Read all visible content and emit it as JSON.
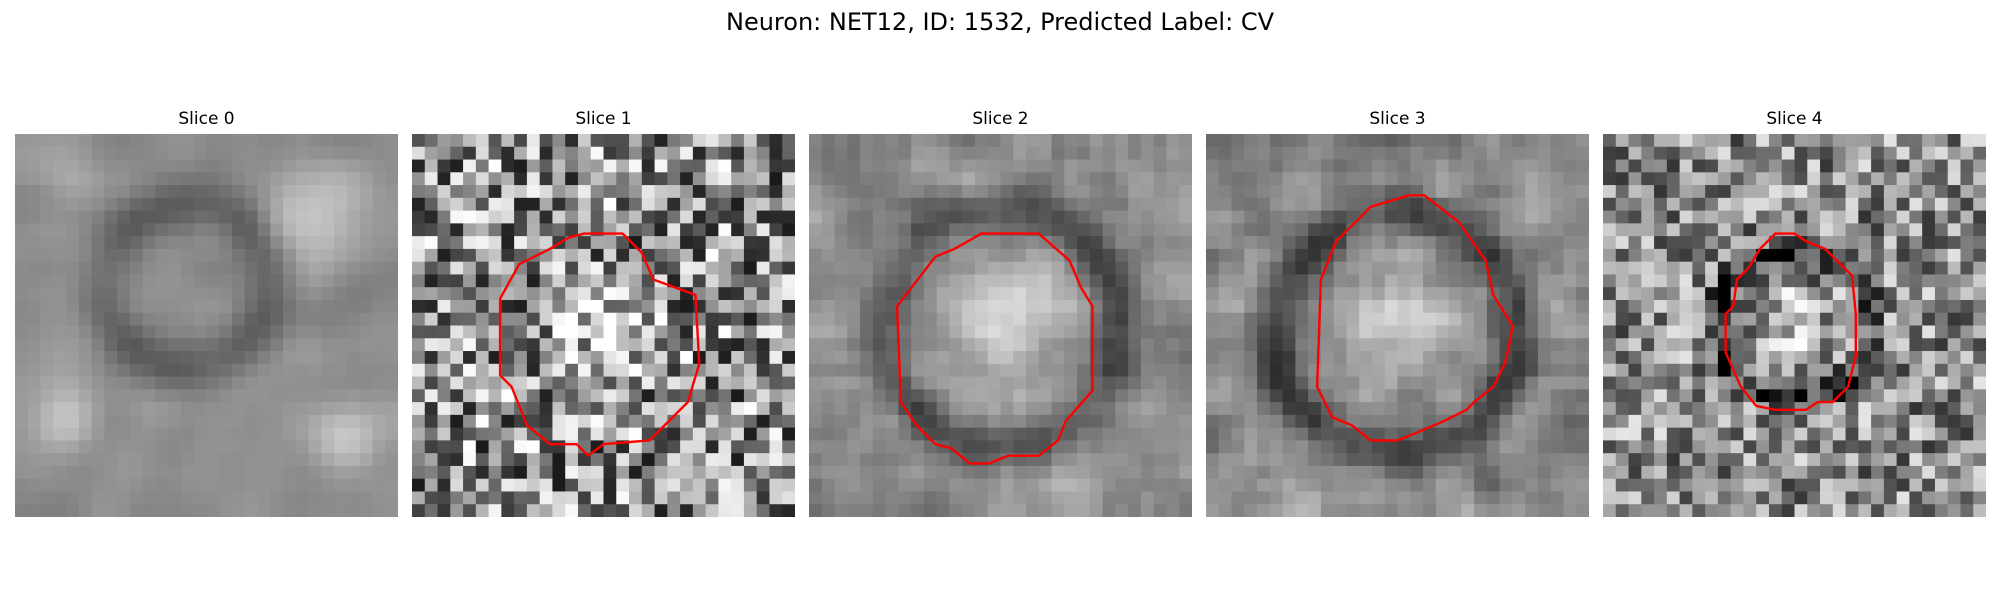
{
  "title": "Neuron: NET12, ID: 1532, Predicted Label: CV",
  "outline_color": "#ff0000",
  "panels": [
    {
      "title": "Slice 0",
      "outline": [],
      "seed": 11,
      "noise": 0.18,
      "blur": 2,
      "bright_blobs": [
        [
          0.12,
          0.1,
          0.1
        ],
        [
          0.8,
          0.2,
          0.18
        ],
        [
          0.13,
          0.75,
          0.12
        ],
        [
          0.85,
          0.8,
          0.15
        ]
      ],
      "dark_rings": [
        [
          0.45,
          0.4,
          0.22,
          0.05
        ]
      ]
    },
    {
      "title": "Slice 1",
      "seed": 23,
      "noise": 0.45,
      "blur": 0,
      "bright_blobs": [
        [
          0.5,
          0.5,
          0.2
        ]
      ],
      "dark_rings": [],
      "outline": [
        [
          0.45,
          0.26
        ],
        [
          0.55,
          0.26
        ],
        [
          0.6,
          0.31
        ],
        [
          0.63,
          0.38
        ],
        [
          0.74,
          0.42
        ],
        [
          0.75,
          0.6
        ],
        [
          0.72,
          0.7
        ],
        [
          0.62,
          0.8
        ],
        [
          0.5,
          0.81
        ],
        [
          0.46,
          0.84
        ],
        [
          0.43,
          0.81
        ],
        [
          0.36,
          0.81
        ],
        [
          0.3,
          0.76
        ],
        [
          0.26,
          0.66
        ],
        [
          0.23,
          0.63
        ],
        [
          0.23,
          0.43
        ],
        [
          0.28,
          0.34
        ],
        [
          0.36,
          0.3
        ],
        [
          0.41,
          0.27
        ]
      ]
    },
    {
      "title": "Slice 2",
      "seed": 37,
      "noise": 0.25,
      "blur": 1,
      "bright_blobs": [
        [
          0.5,
          0.5,
          0.25
        ]
      ],
      "dark_rings": [
        [
          0.5,
          0.5,
          0.31,
          0.06
        ]
      ],
      "outline": [
        [
          0.45,
          0.26
        ],
        [
          0.6,
          0.26
        ],
        [
          0.68,
          0.33
        ],
        [
          0.71,
          0.4
        ],
        [
          0.74,
          0.45
        ],
        [
          0.74,
          0.67
        ],
        [
          0.67,
          0.75
        ],
        [
          0.65,
          0.8
        ],
        [
          0.6,
          0.84
        ],
        [
          0.52,
          0.84
        ],
        [
          0.47,
          0.86
        ],
        [
          0.42,
          0.86
        ],
        [
          0.37,
          0.82
        ],
        [
          0.33,
          0.81
        ],
        [
          0.28,
          0.76
        ],
        [
          0.24,
          0.7
        ],
        [
          0.23,
          0.45
        ],
        [
          0.33,
          0.32
        ],
        [
          0.38,
          0.3
        ]
      ]
    },
    {
      "title": "Slice 3",
      "seed": 53,
      "noise": 0.3,
      "blur": 1,
      "bright_blobs": [
        [
          0.5,
          0.52,
          0.22
        ]
      ],
      "dark_rings": [
        [
          0.5,
          0.52,
          0.32,
          0.07
        ]
      ],
      "outline": [
        [
          0.43,
          0.19
        ],
        [
          0.53,
          0.16
        ],
        [
          0.57,
          0.16
        ],
        [
          0.66,
          0.23
        ],
        [
          0.73,
          0.33
        ],
        [
          0.75,
          0.42
        ],
        [
          0.8,
          0.5
        ],
        [
          0.79,
          0.56
        ],
        [
          0.78,
          0.6
        ],
        [
          0.75,
          0.66
        ],
        [
          0.7,
          0.7
        ],
        [
          0.68,
          0.72
        ],
        [
          0.62,
          0.75
        ],
        [
          0.55,
          0.78
        ],
        [
          0.5,
          0.8
        ],
        [
          0.43,
          0.8
        ],
        [
          0.38,
          0.76
        ],
        [
          0.33,
          0.74
        ],
        [
          0.29,
          0.66
        ],
        [
          0.3,
          0.38
        ],
        [
          0.34,
          0.28
        ],
        [
          0.4,
          0.22
        ]
      ]
    },
    {
      "title": "Slice 4",
      "seed": 71,
      "noise": 0.35,
      "blur": 0,
      "bright_blobs": [
        [
          0.5,
          0.5,
          0.12
        ]
      ],
      "dark_rings": [
        [
          0.5,
          0.5,
          0.2,
          0.05
        ]
      ],
      "outline": [
        [
          0.45,
          0.26
        ],
        [
          0.5,
          0.26
        ],
        [
          0.53,
          0.28
        ],
        [
          0.58,
          0.3
        ],
        [
          0.65,
          0.37
        ],
        [
          0.66,
          0.47
        ],
        [
          0.66,
          0.58
        ],
        [
          0.64,
          0.66
        ],
        [
          0.6,
          0.7
        ],
        [
          0.56,
          0.7
        ],
        [
          0.53,
          0.72
        ],
        [
          0.45,
          0.72
        ],
        [
          0.4,
          0.71
        ],
        [
          0.36,
          0.66
        ],
        [
          0.32,
          0.57
        ],
        [
          0.32,
          0.47
        ],
        [
          0.34,
          0.45
        ],
        [
          0.35,
          0.38
        ],
        [
          0.38,
          0.35
        ],
        [
          0.41,
          0.3
        ]
      ]
    }
  ]
}
